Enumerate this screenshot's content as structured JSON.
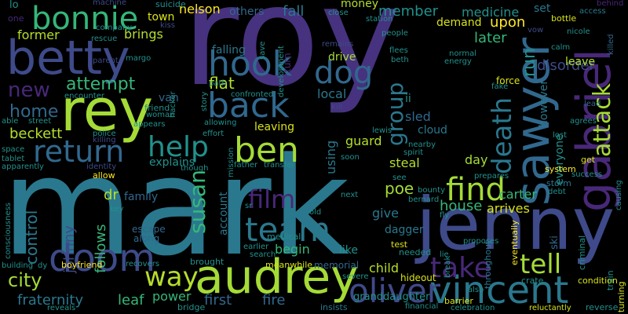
{
  "words": [
    {
      "id": "roy",
      "text": "roy",
      "color": "#46327e"
    },
    {
      "id": "mark",
      "text": "mark",
      "color": "#2a788e"
    },
    {
      "id": "jenny",
      "text": "jenny",
      "color": "#3e4a89"
    },
    {
      "id": "betty",
      "text": "betty",
      "color": "#3e4a89"
    },
    {
      "id": "rey",
      "text": "rey",
      "color": "#a5db36"
    },
    {
      "id": "audrey",
      "text": "audrey",
      "color": "#a5db36"
    },
    {
      "id": "sawyer",
      "text": "sawyer",
      "color": "#31688e"
    },
    {
      "id": "gabriel",
      "text": "gabriel",
      "color": "#482878"
    },
    {
      "id": "vincent",
      "text": "vincent",
      "color": "#2a788e"
    },
    {
      "id": "oliver",
      "text": "oliver",
      "color": "#3e4a89"
    },
    {
      "id": "bonnie",
      "text": "bonnie",
      "color": "#35b779"
    },
    {
      "id": "doom",
      "text": "doom",
      "color": "#3e4a89"
    },
    {
      "id": "ben",
      "text": "ben",
      "color": "#a5db36"
    },
    {
      "id": "hook",
      "text": "hook",
      "color": "#31688e"
    },
    {
      "id": "back",
      "text": "back",
      "color": "#31688e"
    },
    {
      "id": "help",
      "text": "help",
      "color": "#21918c"
    },
    {
      "id": "return",
      "text": "return",
      "color": "#31688e"
    },
    {
      "id": "team",
      "text": "team",
      "color": "#2a788e"
    },
    {
      "id": "find",
      "text": "find",
      "color": "#a5db36"
    },
    {
      "id": "tell",
      "text": "tell",
      "color": "#a5db36"
    },
    {
      "id": "take",
      "text": "take",
      "color": "#482878"
    },
    {
      "id": "way",
      "text": "way",
      "color": "#b5de2b"
    },
    {
      "id": "dog",
      "text": "dog",
      "color": "#31688e"
    },
    {
      "id": "film",
      "text": "film",
      "color": "#482878"
    },
    {
      "id": "susan",
      "text": "susan",
      "color": "#35b779"
    },
    {
      "id": "death",
      "text": "death",
      "color": "#2a788e"
    },
    {
      "id": "attack",
      "text": "attack",
      "color": "#a5db36"
    },
    {
      "id": "group",
      "text": "group",
      "color": "#2a788e"
    },
    {
      "id": "new",
      "text": "new",
      "color": "#482878"
    },
    {
      "id": "attempt",
      "text": "attempt",
      "color": "#35b779"
    },
    {
      "id": "home",
      "text": "home",
      "color": "#31688e"
    },
    {
      "id": "beckett",
      "text": "beckett",
      "color": "#b5de2b"
    },
    {
      "id": "city",
      "text": "city",
      "color": "#a5db36"
    },
    {
      "id": "fraternity",
      "text": "fraternity",
      "color": "#2a788e"
    },
    {
      "id": "control",
      "text": "control",
      "color": "#2a788e"
    },
    {
      "id": "johnny",
      "text": "johnny",
      "color": "#3e4a89"
    },
    {
      "id": "follows",
      "text": "follows",
      "color": "#35b779"
    },
    {
      "id": "former",
      "text": "former",
      "color": "#b5de2b"
    },
    {
      "id": "brings",
      "text": "brings",
      "color": "#b5de2b"
    },
    {
      "id": "nelson",
      "text": "nelson",
      "color": "#fde725"
    },
    {
      "id": "town",
      "text": "town",
      "color": "#d8e219"
    },
    {
      "id": "others",
      "text": "others",
      "color": "#31688e"
    },
    {
      "id": "fall",
      "text": "fall",
      "color": "#2a788e"
    },
    {
      "id": "member",
      "text": "member",
      "color": "#21918c"
    },
    {
      "id": "money",
      "text": "money",
      "color": "#b5de2b"
    },
    {
      "id": "demand",
      "text": "demand",
      "color": "#d8e219"
    },
    {
      "id": "medicine",
      "text": "medicine",
      "color": "#21918c"
    },
    {
      "id": "set",
      "text": "set",
      "color": "#2a788e"
    },
    {
      "id": "upon",
      "text": "upon",
      "color": "#fde725"
    },
    {
      "id": "later",
      "text": "later",
      "color": "#35b779"
    },
    {
      "id": "run",
      "text": "run",
      "color": "#21918c"
    },
    {
      "id": "disorder",
      "text": "disorder",
      "color": "#3e4a89"
    },
    {
      "id": "leave",
      "text": "leave",
      "color": "#b5de2b"
    },
    {
      "id": "falling",
      "text": "falling",
      "color": "#2a788e"
    },
    {
      "id": "flat",
      "text": "flat",
      "color": "#b5de2b"
    },
    {
      "id": "van",
      "text": "van",
      "color": "#31688e"
    },
    {
      "id": "drive",
      "text": "drive",
      "color": "#a5db36"
    },
    {
      "id": "local",
      "text": "local",
      "color": "#2a788e"
    },
    {
      "id": "ii",
      "text": "ii",
      "color": "#21918c"
    },
    {
      "id": "sled",
      "text": "sled",
      "color": "#31688e"
    },
    {
      "id": "cloud",
      "text": "cloud",
      "color": "#2a788e"
    },
    {
      "id": "leaving",
      "text": "leaving",
      "color": "#d8e219"
    },
    {
      "id": "guard",
      "text": "guard",
      "color": "#b5de2b"
    },
    {
      "id": "steal",
      "text": "steal",
      "color": "#b5de2b"
    },
    {
      "id": "explains",
      "text": "explains",
      "color": "#21918c"
    },
    {
      "id": "using",
      "text": "using",
      "color": "#2a788e"
    },
    {
      "id": "poe",
      "text": "poe",
      "color": "#a5db36"
    },
    {
      "id": "carter",
      "text": "carter",
      "color": "#35b779"
    },
    {
      "id": "however",
      "text": "however",
      "color": "#2a788e"
    },
    {
      "id": "everyone",
      "text": "everyone",
      "color": "#21918c"
    },
    {
      "id": "day",
      "text": "day",
      "color": "#a5db36"
    },
    {
      "id": "house",
      "text": "house",
      "color": "#35b779"
    },
    {
      "id": "arrives",
      "text": "arrives",
      "color": "#d8e219"
    },
    {
      "id": "give",
      "text": "give",
      "color": "#2a788e"
    },
    {
      "id": "dagger",
      "text": "dagger",
      "color": "#2a788e"
    },
    {
      "id": "dr",
      "text": "dr",
      "color": "#b5de2b"
    },
    {
      "id": "family",
      "text": "family",
      "color": "#31688e"
    },
    {
      "id": "account",
      "text": "account",
      "color": "#2a788e"
    },
    {
      "id": "begin",
      "text": "begin",
      "color": "#35b779"
    },
    {
      "id": "like",
      "text": "like",
      "color": "#21918c"
    },
    {
      "id": "child",
      "text": "child",
      "color": "#b5de2b"
    },
    {
      "id": "power",
      "text": "power",
      "color": "#35b779"
    },
    {
      "id": "leaf",
      "text": "leaf",
      "color": "#35b779"
    },
    {
      "id": "first",
      "text": "first",
      "color": "#31688e"
    },
    {
      "id": "fire",
      "text": "fire",
      "color": "#31688e"
    },
    {
      "id": "memorial",
      "text": "memorial",
      "color": "#31688e"
    },
    {
      "id": "meanwhile",
      "text": "meanwhile",
      "color": "#d8e219"
    },
    {
      "id": "hideout",
      "text": "hideout",
      "color": "#d8e219"
    },
    {
      "id": "granddaughter",
      "text": "granddaughter",
      "color": "#21918c"
    },
    {
      "id": "insists",
      "text": "insists",
      "color": "#2a788e"
    },
    {
      "id": "barrier",
      "text": "barrier",
      "color": "#d8e219"
    },
    {
      "id": "ski",
      "text": "ski",
      "color": "#31688e"
    },
    {
      "id": "crate",
      "text": "crate",
      "color": "#21918c"
    },
    {
      "id": "condition",
      "text": "condition",
      "color": "#d8e219"
    },
    {
      "id": "reverse",
      "text": "reverse",
      "color": "#21918c"
    },
    {
      "id": "turning",
      "text": "turning",
      "color": "#d8e219"
    },
    {
      "id": "train",
      "text": "train",
      "color": "#21918c"
    },
    {
      "id": "criminal",
      "text": "criminal",
      "color": "#21918c"
    },
    {
      "id": "boyfriend",
      "text": "boyfriend",
      "color": "#fde725"
    },
    {
      "id": "escape",
      "text": "escape",
      "color": "#31688e"
    },
    {
      "id": "along",
      "text": "along",
      "color": "#31688e"
    },
    {
      "id": "brought",
      "text": "brought",
      "color": "#21918c"
    },
    {
      "id": "bridge",
      "text": "bridge",
      "color": "#21918c"
    },
    {
      "id": "medical",
      "text": "medical",
      "color": "#21918c"
    },
    {
      "id": "test",
      "text": "test",
      "color": "#d8e219"
    },
    {
      "id": "needed",
      "text": "needed",
      "color": "#21918c"
    },
    {
      "id": "lo",
      "text": "lo",
      "color": "#21918c"
    },
    {
      "id": "suicide",
      "text": "suicide",
      "color": "#21918c"
    },
    {
      "id": "machine",
      "text": "machine",
      "color": "#3e4a89"
    },
    {
      "id": "one",
      "text": "one",
      "color": "#482878"
    },
    {
      "id": "kiss",
      "text": "kiss",
      "color": "#3e4a89"
    },
    {
      "id": "company",
      "text": "company",
      "color": "#21918c"
    },
    {
      "id": "close",
      "text": "close",
      "color": "#21918c"
    },
    {
      "id": "station",
      "text": "station",
      "color": "#21918c"
    },
    {
      "id": "people",
      "text": "people",
      "color": "#21918c"
    },
    {
      "id": "remains",
      "text": "remains",
      "color": "#3e4a89"
    },
    {
      "id": "flees",
      "text": "flees",
      "color": "#21918c"
    },
    {
      "id": "beth",
      "text": "beth",
      "color": "#21918c"
    },
    {
      "id": "normal",
      "text": "normal",
      "color": "#21918c"
    },
    {
      "id": "energy",
      "text": "energy",
      "color": "#21918c"
    },
    {
      "id": "bottle",
      "text": "bottle",
      "color": "#d8e219"
    },
    {
      "id": "access",
      "text": "access",
      "color": "#2a788e"
    },
    {
      "id": "behind",
      "text": "behind",
      "color": "#482878"
    },
    {
      "id": "nicole",
      "text": "nicole",
      "color": "#21918c"
    },
    {
      "id": "killed",
      "text": "killed",
      "color": "#31688e"
    },
    {
      "id": "calm",
      "text": "calm",
      "color": "#21918c"
    },
    {
      "id": "lead",
      "text": "lead",
      "color": "#31688e"
    },
    {
      "id": "agrees",
      "text": "agrees",
      "color": "#21918c"
    },
    {
      "id": "force",
      "text": "force",
      "color": "#d8e219"
    },
    {
      "id": "fake",
      "text": "fake",
      "color": "#21918c"
    },
    {
      "id": "lost",
      "text": "lost",
      "color": "#21918c"
    },
    {
      "id": "success",
      "text": "success",
      "color": "#21918c"
    },
    {
      "id": "get",
      "text": "get",
      "color": "#d8e219"
    },
    {
      "id": "causing",
      "text": "causing",
      "color": "#21918c"
    },
    {
      "id": "system",
      "text": "system",
      "color": "#fde725"
    },
    {
      "id": "storm",
      "text": "storm",
      "color": "#2a788e"
    },
    {
      "id": "debt",
      "text": "debt",
      "color": "#21918c"
    },
    {
      "id": "prepares",
      "text": "prepares",
      "color": "#21918c"
    },
    {
      "id": "eventually",
      "text": "eventually",
      "color": "#fde725"
    },
    {
      "id": "throughout",
      "text": "throughout",
      "color": "#2a788e"
    },
    {
      "id": "proposes",
      "text": "proposes",
      "color": "#21918c"
    },
    {
      "id": "lie",
      "text": "lie",
      "color": "#21918c"
    },
    {
      "id": "fly",
      "text": "fly",
      "color": "#21918c"
    },
    {
      "id": "break",
      "text": "break",
      "color": "#21918c"
    },
    {
      "id": "bernard",
      "text": "bernard",
      "color": "#21918c"
    },
    {
      "id": "bounty",
      "text": "bounty",
      "color": "#21918c"
    },
    {
      "id": "see",
      "text": "see",
      "color": "#21918c"
    },
    {
      "id": "spirit",
      "text": "spirit",
      "color": "#21918c"
    },
    {
      "id": "nearby",
      "text": "nearby",
      "color": "#21918c"
    },
    {
      "id": "lewis",
      "text": "lewis",
      "color": "#21918c"
    },
    {
      "id": "soon",
      "text": "soon",
      "color": "#21918c"
    },
    {
      "id": "next",
      "text": "next",
      "color": "#21918c"
    },
    {
      "id": "severe",
      "text": "severe",
      "color": "#21918c"
    },
    {
      "id": "financial",
      "text": "financial",
      "color": "#21918c"
    },
    {
      "id": "celebration",
      "text": "celebration",
      "color": "#21918c"
    },
    {
      "id": "reluctantly",
      "text": "reluctantly",
      "color": "#d8e219"
    },
    {
      "id": "also",
      "text": "also",
      "color": "#21918c"
    },
    {
      "id": "kill",
      "text": "kill",
      "color": "#3e4a89"
    },
    {
      "id": "development",
      "text": "development",
      "color": "#21918c"
    },
    {
      "id": "turn",
      "text": "turn",
      "color": "#482878"
    },
    {
      "id": "save",
      "text": "save",
      "color": "#21918c"
    },
    {
      "id": "path",
      "text": "path",
      "color": "#21918c"
    },
    {
      "id": "confronted",
      "text": "confronted",
      "color": "#21918c"
    },
    {
      "id": "allowing",
      "text": "allowing",
      "color": "#21918c"
    },
    {
      "id": "effort",
      "text": "effort",
      "color": "#21918c"
    },
    {
      "id": "mission",
      "text": "mission",
      "color": "#21918c"
    },
    {
      "id": "father",
      "text": "father",
      "color": "#21918c"
    },
    {
      "id": "transfer",
      "text": "transfer",
      "color": "#21918c"
    },
    {
      "id": "though",
      "text": "though",
      "color": "#21918c"
    },
    {
      "id": "sr",
      "text": "sr",
      "color": "#21918c"
    },
    {
      "id": "old",
      "text": "old",
      "color": "#21918c"
    },
    {
      "id": "earlier",
      "text": "earlier",
      "color": "#21918c"
    },
    {
      "id": "search",
      "text": "search",
      "color": "#21918c"
    },
    {
      "id": "story",
      "text": "story",
      "color": "#21918c"
    },
    {
      "id": "hacker",
      "text": "hacker",
      "color": "#21918c"
    },
    {
      "id": "friend",
      "text": "friend",
      "color": "#21918c"
    },
    {
      "id": "woman",
      "text": "woman",
      "color": "#21918c"
    },
    {
      "id": "appears",
      "text": "appears",
      "color": "#21918c"
    },
    {
      "id": "margo",
      "text": "margo",
      "color": "#21918c"
    },
    {
      "id": "parent",
      "text": "parent",
      "color": "#3e4a89"
    },
    {
      "id": "rescue",
      "text": "rescue",
      "color": "#21918c"
    },
    {
      "id": "encounter",
      "text": "encounter",
      "color": "#21918c"
    },
    {
      "id": "able",
      "text": "able",
      "color": "#21918c"
    },
    {
      "id": "street",
      "text": "street",
      "color": "#21918c"
    },
    {
      "id": "police",
      "text": "police",
      "color": "#21918c"
    },
    {
      "id": "killing",
      "text": "killing",
      "color": "#3e4a89"
    },
    {
      "id": "space",
      "text": "space",
      "color": "#21918c"
    },
    {
      "id": "tablet",
      "text": "tablet",
      "color": "#21918c"
    },
    {
      "id": "apparently",
      "text": "apparently",
      "color": "#21918c"
    },
    {
      "id": "identity",
      "text": "identity",
      "color": "#3e4a89"
    },
    {
      "id": "allow",
      "text": "allow",
      "color": "#fde725"
    },
    {
      "id": "key",
      "text": "key",
      "color": "#21918c"
    },
    {
      "id": "consciousness",
      "text": "consciousness",
      "color": "#21918c"
    },
    {
      "id": "building",
      "text": "building",
      "color": "#21918c"
    },
    {
      "id": "dy",
      "text": "dy",
      "color": "#21918c"
    },
    {
      "id": "reveals",
      "text": "reveals",
      "color": "#21918c"
    },
    {
      "id": "recovers",
      "text": "recovers",
      "color": "#21918c"
    },
    {
      "id": "vow",
      "text": "vow",
      "color": "#3e4a89"
    }
  ]
}
